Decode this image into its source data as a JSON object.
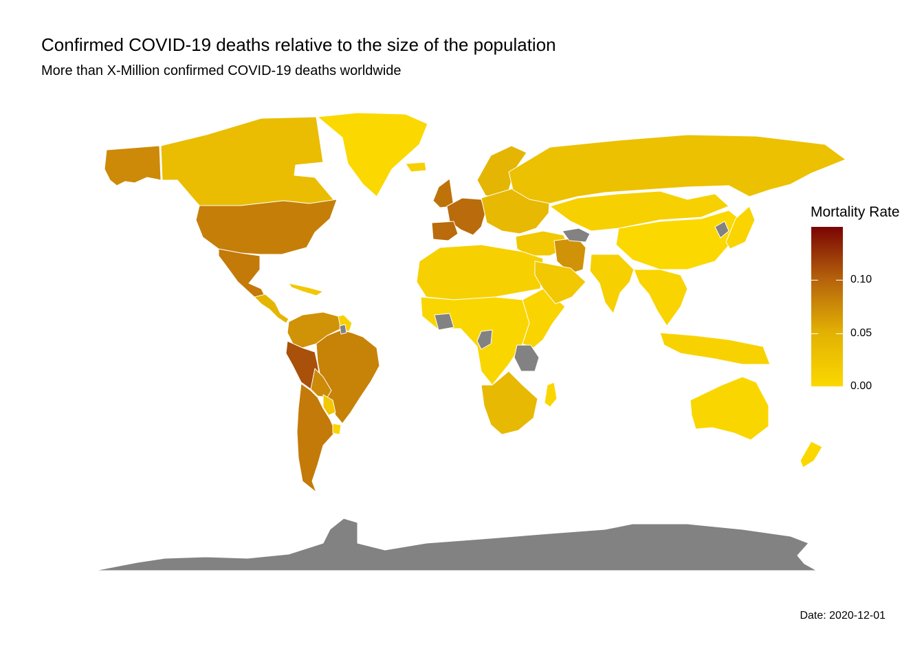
{
  "chart": {
    "title": "Confirmed COVID-19 deaths relative to the size of the population",
    "subtitle": "More than X-Million confirmed COVID-19 deaths worldwide",
    "caption": "Date: 2020-12-01"
  },
  "legend": {
    "title": "Mortality Rate",
    "ticks": [
      {
        "value": 0.1,
        "label": "0.10"
      },
      {
        "value": 0.05,
        "label": "0.05"
      },
      {
        "value": 0.0,
        "label": "0.00"
      }
    ],
    "range": [
      0,
      0.15
    ],
    "colors": [
      "#fbd800",
      "#e2b103",
      "#b5630c",
      "#7a0403"
    ],
    "na_color": "#828282"
  },
  "map": {
    "regions": [
      {
        "name": "Alaska",
        "rate": 0.075
      },
      {
        "name": "Canada",
        "rate": 0.035
      },
      {
        "name": "Greenland",
        "rate": 0.0
      },
      {
        "name": "United States",
        "rate": 0.082
      },
      {
        "name": "Mexico",
        "rate": 0.085
      },
      {
        "name": "Central America",
        "rate": 0.045
      },
      {
        "name": "Caribbean",
        "rate": 0.02
      },
      {
        "name": "Colombia & Venezuela",
        "rate": 0.07
      },
      {
        "name": "Guianas",
        "rate": 0.01
      },
      {
        "name": "Peru",
        "rate": 0.11
      },
      {
        "name": "Brazil",
        "rate": 0.08
      },
      {
        "name": "Bolivia",
        "rate": 0.075
      },
      {
        "name": "Paraguay",
        "rate": 0.02
      },
      {
        "name": "Argentina & Chile",
        "rate": 0.085
      },
      {
        "name": "Uruguay",
        "rate": 0.005
      },
      {
        "name": "Iceland",
        "rate": 0.01
      },
      {
        "name": "Scandinavia",
        "rate": 0.045
      },
      {
        "name": "United Kingdom",
        "rate": 0.09
      },
      {
        "name": "Western Europe",
        "rate": 0.095
      },
      {
        "name": "Spain & Portugal",
        "rate": 0.095
      },
      {
        "name": "Eastern Europe",
        "rate": 0.04
      },
      {
        "name": "Russia",
        "rate": 0.03
      },
      {
        "name": "Central Asia & Mongolia",
        "rate": 0.01
      },
      {
        "name": "Turkey & Middle East",
        "rate": 0.02
      },
      {
        "name": "Iran",
        "rate": 0.07
      },
      {
        "name": "China",
        "rate": 0.0
      },
      {
        "name": "Japan",
        "rate": 0.005
      },
      {
        "name": "North Africa",
        "rate": 0.01
      },
      {
        "name": "West & Central Africa",
        "rate": 0.003
      },
      {
        "name": "East Africa",
        "rate": 0.005
      },
      {
        "name": "Southern Africa",
        "rate": 0.04
      },
      {
        "name": "Madagascar",
        "rate": 0.002
      },
      {
        "name": "Arabian Peninsula",
        "rate": 0.02
      },
      {
        "name": "India",
        "rate": 0.01
      },
      {
        "name": "Southeast Asia",
        "rate": 0.005
      },
      {
        "name": "Indonesia",
        "rate": 0.008
      },
      {
        "name": "Australia",
        "rate": 0.003
      },
      {
        "name": "New Zealand",
        "rate": 0.001
      },
      {
        "name": "Turkmenistan",
        "rate": null
      },
      {
        "name": "North Korea",
        "rate": null
      },
      {
        "name": "Ivory Coast",
        "rate": null
      },
      {
        "name": "Tanzania",
        "rate": null
      },
      {
        "name": "Congo",
        "rate": null
      },
      {
        "name": "French Guiana",
        "rate": null
      },
      {
        "name": "Antarctica",
        "rate": null
      }
    ]
  }
}
